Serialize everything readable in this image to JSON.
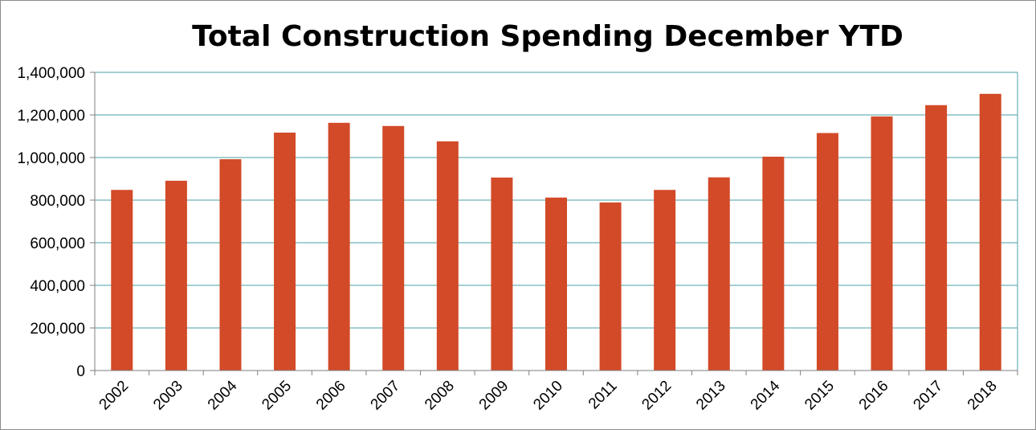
{
  "chart_data": {
    "type": "bar",
    "title": "Total Construction Spending December YTD",
    "xlabel": "",
    "ylabel": "",
    "ylim": [
      0,
      1400000
    ],
    "yticks": [
      0,
      200000,
      400000,
      600000,
      800000,
      1000000,
      1200000,
      1400000
    ],
    "ytick_labels": [
      "0",
      "200,000",
      "400,000",
      "600,000",
      "800,000",
      "1,000,000",
      "1,200,000",
      "1,400,000"
    ],
    "categories": [
      "2002",
      "2003",
      "2004",
      "2005",
      "2006",
      "2007",
      "2008",
      "2009",
      "2010",
      "2011",
      "2012",
      "2013",
      "2014",
      "2015",
      "2016",
      "2017",
      "2018"
    ],
    "values": [
      848000,
      891000,
      992000,
      1117000,
      1163000,
      1148000,
      1076000,
      906000,
      812000,
      789000,
      848000,
      907000,
      1004000,
      1115000,
      1193000,
      1246000,
      1299000
    ],
    "grid": true,
    "colors": {
      "bar": "#d24a28",
      "grid": "#4aa0a6",
      "axis": "#7f7f7f"
    }
  }
}
